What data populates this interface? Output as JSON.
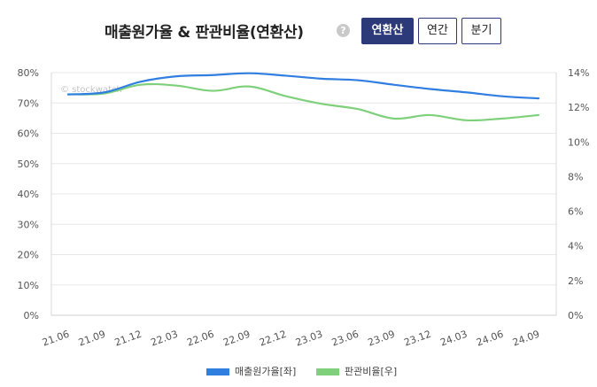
{
  "header": {
    "title": "매출원가율 & 판관비율(연환산)",
    "help_icon": "?",
    "buttons": [
      {
        "label": "연환산",
        "active": true
      },
      {
        "label": "연간",
        "active": false
      },
      {
        "label": "분기",
        "active": false
      }
    ]
  },
  "watermark": "© stockwatch",
  "chart_data": {
    "type": "line",
    "categories": [
      "21.06",
      "21.09",
      "21.12",
      "22.03",
      "22.06",
      "22.09",
      "22.12",
      "23.03",
      "23.06",
      "23.09",
      "23.12",
      "24.03",
      "24.06",
      "24.09"
    ],
    "left_axis": {
      "ticks": [
        "0%",
        "10%",
        "20%",
        "30%",
        "40%",
        "50%",
        "60%",
        "70%",
        "80%"
      ],
      "min": 0,
      "max": 80
    },
    "right_axis": {
      "ticks": [
        "0%",
        "2%",
        "4%",
        "6%",
        "8%",
        "10%",
        "12%",
        "14%"
      ],
      "min": 0,
      "max": 14
    },
    "series": [
      {
        "name": "매출원가율[좌]",
        "axis": "left",
        "color": "#2f7ee0",
        "values": [
          72.8,
          73.5,
          77.0,
          78.8,
          79.2,
          79.8,
          79.0,
          78.0,
          77.5,
          76.0,
          74.6,
          73.5,
          72.2,
          71.5
        ]
      },
      {
        "name": "판관비율[우]",
        "axis": "right",
        "color": "#7fd07a",
        "values": [
          12.75,
          12.8,
          13.3,
          13.25,
          12.95,
          13.2,
          12.65,
          12.2,
          11.9,
          11.35,
          11.55,
          11.25,
          11.35,
          11.55
        ]
      }
    ],
    "grid": true,
    "legend_position": "bottom"
  }
}
